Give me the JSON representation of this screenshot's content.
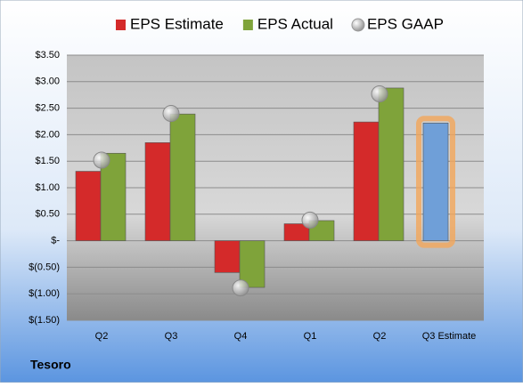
{
  "chart_data": {
    "type": "bar",
    "title": "Tesoro",
    "categories": [
      "Q2",
      "Q3",
      "Q4",
      "Q1",
      "Q2",
      "Q3 Estimate"
    ],
    "series": [
      {
        "name": "EPS Estimate",
        "color": "#d42a2a",
        "values": [
          1.31,
          1.85,
          -0.6,
          0.32,
          2.24,
          2.22
        ],
        "marker": "bar"
      },
      {
        "name": "EPS Actual",
        "color": "#7fa33a",
        "values": [
          1.65,
          2.39,
          -0.88,
          0.38,
          2.88,
          null
        ],
        "marker": "bar"
      },
      {
        "name": "EPS GAAP",
        "color": "#a8a8a8",
        "values": [
          1.52,
          2.4,
          -0.89,
          0.39,
          2.77,
          null
        ],
        "marker": "circle"
      }
    ],
    "highlight": {
      "index": 5,
      "color": "#6f9fd8",
      "glow": "#f2a65a"
    },
    "ylim": [
      -1.5,
      3.5
    ],
    "yticks": [
      {
        "value": 3.5,
        "label": "$3.50"
      },
      {
        "value": 3,
        "label": "$3.00"
      },
      {
        "value": 2.5,
        "label": "$2.50"
      },
      {
        "value": 2,
        "label": "$2.00"
      },
      {
        "value": 1.5,
        "label": "$1.50"
      },
      {
        "value": 1,
        "label": "$1.00"
      },
      {
        "value": 0.5,
        "label": "$0.50"
      },
      {
        "value": 0,
        "label": "$-"
      },
      {
        "value": -0.5,
        "label": "$(0.50)"
      },
      {
        "value": -1,
        "label": "$(1.00)"
      },
      {
        "value": -1.5,
        "label": "$(1.50)"
      }
    ],
    "grid": true
  }
}
